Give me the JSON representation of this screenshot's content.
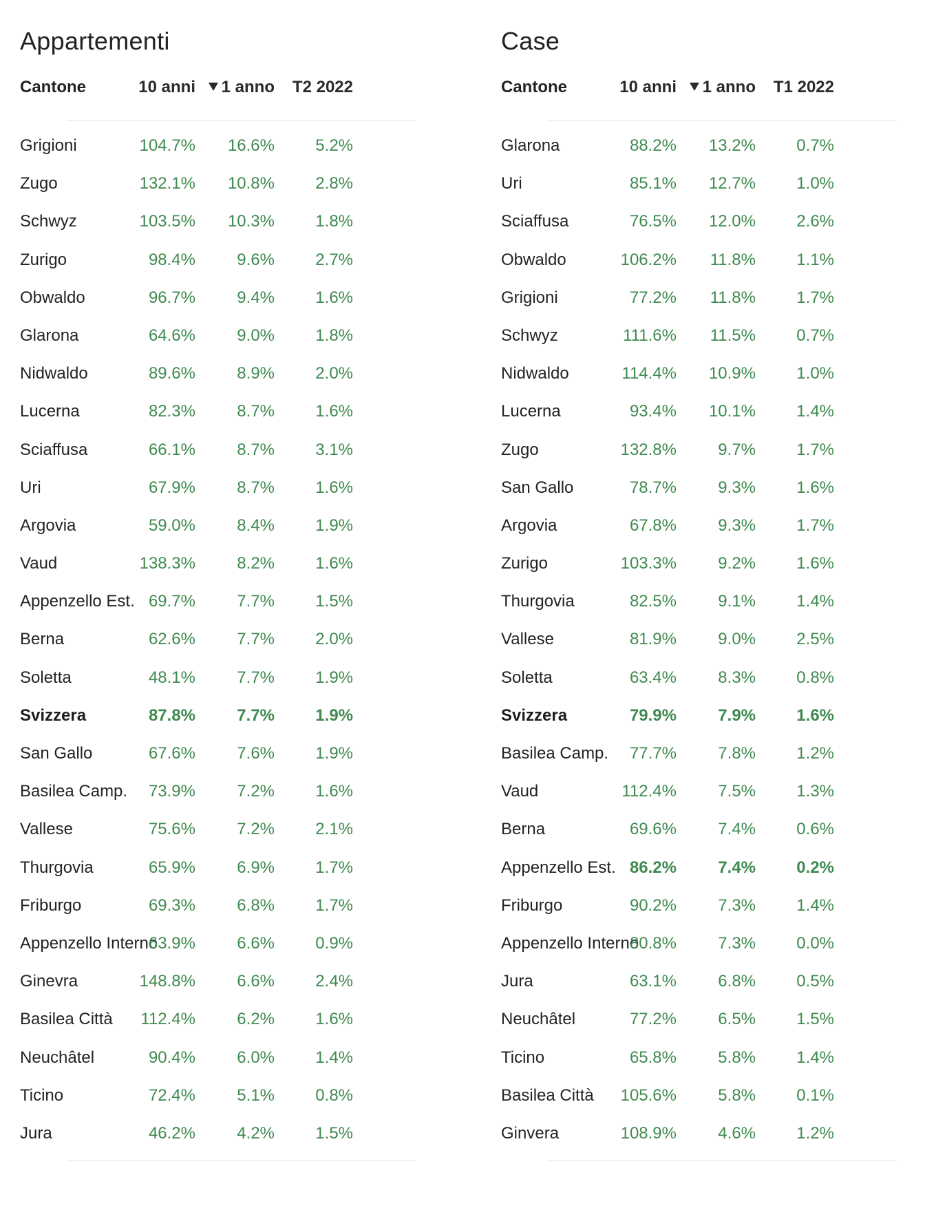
{
  "panels": [
    {
      "title": "Appartementi",
      "headers": {
        "name": "Cantone",
        "ten": "10 anni",
        "one": "1 anno",
        "q": "T2 2022"
      },
      "rows": [
        {
          "name": "Grigioni",
          "ten": "104.7%",
          "one": "16.6%",
          "q": "5.2%"
        },
        {
          "name": "Zugo",
          "ten": "132.1%",
          "one": "10.8%",
          "q": "2.8%"
        },
        {
          "name": "Schwyz",
          "ten": "103.5%",
          "one": "10.3%",
          "q": "1.8%"
        },
        {
          "name": "Zurigo",
          "ten": "98.4%",
          "one": "9.6%",
          "q": "2.7%"
        },
        {
          "name": "Obwaldo",
          "ten": "96.7%",
          "one": "9.4%",
          "q": "1.6%"
        },
        {
          "name": "Glarona",
          "ten": "64.6%",
          "one": "9.0%",
          "q": "1.8%"
        },
        {
          "name": "Nidwaldo",
          "ten": "89.6%",
          "one": "8.9%",
          "q": "2.0%"
        },
        {
          "name": "Lucerna",
          "ten": "82.3%",
          "one": "8.7%",
          "q": "1.6%"
        },
        {
          "name": "Sciaffusa",
          "ten": "66.1%",
          "one": "8.7%",
          "q": "3.1%"
        },
        {
          "name": "Uri",
          "ten": "67.9%",
          "one": "8.7%",
          "q": "1.6%"
        },
        {
          "name": "Argovia",
          "ten": "59.0%",
          "one": "8.4%",
          "q": "1.9%"
        },
        {
          "name": "Vaud",
          "ten": "138.3%",
          "one": "8.2%",
          "q": "1.6%"
        },
        {
          "name": "Appenzello Est.",
          "ten": "69.7%",
          "one": "7.7%",
          "q": "1.5%"
        },
        {
          "name": "Berna",
          "ten": "62.6%",
          "one": "7.7%",
          "q": "2.0%"
        },
        {
          "name": "Soletta",
          "ten": "48.1%",
          "one": "7.7%",
          "q": "1.9%"
        },
        {
          "name": "Svizzera",
          "ten": "87.8%",
          "one": "7.7%",
          "q": "1.9%",
          "highlight": true
        },
        {
          "name": "San Gallo",
          "ten": "67.6%",
          "one": "7.6%",
          "q": "1.9%"
        },
        {
          "name": "Basilea Camp.",
          "ten": "73.9%",
          "one": "7.2%",
          "q": "1.6%"
        },
        {
          "name": "Vallese",
          "ten": "75.6%",
          "one": "7.2%",
          "q": "2.1%"
        },
        {
          "name": "Thurgovia",
          "ten": "65.9%",
          "one": "6.9%",
          "q": "1.7%"
        },
        {
          "name": "Friburgo",
          "ten": "69.3%",
          "one": "6.8%",
          "q": "1.7%"
        },
        {
          "name": "Appenzello Interno",
          "ten": "63.9%",
          "one": "6.6%",
          "q": "0.9%"
        },
        {
          "name": "Ginevra",
          "ten": "148.8%",
          "one": "6.6%",
          "q": "2.4%"
        },
        {
          "name": "Basilea Città",
          "ten": "112.4%",
          "one": "6.2%",
          "q": "1.6%"
        },
        {
          "name": "Neuchâtel",
          "ten": "90.4%",
          "one": "6.0%",
          "q": "1.4%"
        },
        {
          "name": "Ticino",
          "ten": "72.4%",
          "one": "5.1%",
          "q": "0.8%"
        },
        {
          "name": "Jura",
          "ten": "46.2%",
          "one": "4.2%",
          "q": "1.5%"
        }
      ]
    },
    {
      "title": "Case",
      "headers": {
        "name": "Cantone",
        "ten": "10 anni",
        "one": "1 anno",
        "q": "T1 2022"
      },
      "rows": [
        {
          "name": "Glarona",
          "ten": "88.2%",
          "one": "13.2%",
          "q": "0.7%"
        },
        {
          "name": "Uri",
          "ten": "85.1%",
          "one": "12.7%",
          "q": "1.0%"
        },
        {
          "name": "Sciaffusa",
          "ten": "76.5%",
          "one": "12.0%",
          "q": "2.6%"
        },
        {
          "name": "Obwaldo",
          "ten": "106.2%",
          "one": "11.8%",
          "q": "1.1%"
        },
        {
          "name": "Grigioni",
          "ten": "77.2%",
          "one": "11.8%",
          "q": "1.7%"
        },
        {
          "name": "Schwyz",
          "ten": "111.6%",
          "one": "11.5%",
          "q": "0.7%"
        },
        {
          "name": "Nidwaldo",
          "ten": "114.4%",
          "one": "10.9%",
          "q": "1.0%"
        },
        {
          "name": "Lucerna",
          "ten": "93.4%",
          "one": "10.1%",
          "q": "1.4%"
        },
        {
          "name": "Zugo",
          "ten": "132.8%",
          "one": "9.7%",
          "q": "1.7%"
        },
        {
          "name": "San Gallo",
          "ten": "78.7%",
          "one": "9.3%",
          "q": "1.6%"
        },
        {
          "name": "Argovia",
          "ten": "67.8%",
          "one": "9.3%",
          "q": "1.7%"
        },
        {
          "name": "Zurigo",
          "ten": "103.3%",
          "one": "9.2%",
          "q": "1.6%"
        },
        {
          "name": "Thurgovia",
          "ten": "82.5%",
          "one": "9.1%",
          "q": "1.4%"
        },
        {
          "name": "Vallese",
          "ten": "81.9%",
          "one": "9.0%",
          "q": "2.5%"
        },
        {
          "name": "Soletta",
          "ten": "63.4%",
          "one": "8.3%",
          "q": "0.8%"
        },
        {
          "name": "Svizzera",
          "ten": "79.9%",
          "one": "7.9%",
          "q": "1.6%",
          "highlight": true
        },
        {
          "name": "Basilea Camp.",
          "ten": "77.7%",
          "one": "7.8%",
          "q": "1.2%"
        },
        {
          "name": "Vaud",
          "ten": "112.4%",
          "one": "7.5%",
          "q": "1.3%"
        },
        {
          "name": "Berna",
          "ten": "69.6%",
          "one": "7.4%",
          "q": "0.6%"
        },
        {
          "name": "Appenzello Est.",
          "ten": "86.2%",
          "one": "7.4%",
          "q": "0.2%",
          "semi": true
        },
        {
          "name": "Friburgo",
          "ten": "90.2%",
          "one": "7.3%",
          "q": "1.4%"
        },
        {
          "name": "Appenzello Interno",
          "ten": "80.8%",
          "one": "7.3%",
          "q": "0.0%"
        },
        {
          "name": "Jura",
          "ten": "63.1%",
          "one": "6.8%",
          "q": "0.5%"
        },
        {
          "name": "Neuchâtel",
          "ten": "77.2%",
          "one": "6.5%",
          "q": "1.5%"
        },
        {
          "name": "Ticino",
          "ten": "65.8%",
          "one": "5.8%",
          "q": "1.4%"
        },
        {
          "name": "Basilea Città",
          "ten": "105.6%",
          "one": "5.8%",
          "q": "0.1%"
        },
        {
          "name": "Ginvera",
          "ten": "108.9%",
          "one": "4.6%",
          "q": "1.2%"
        }
      ]
    }
  ],
  "colors": {
    "value_green": "#3f8a4f",
    "text": "#232323",
    "separator": "#e4e4e4"
  },
  "icons": {
    "sort": "sort-desc-triangle-icon"
  }
}
